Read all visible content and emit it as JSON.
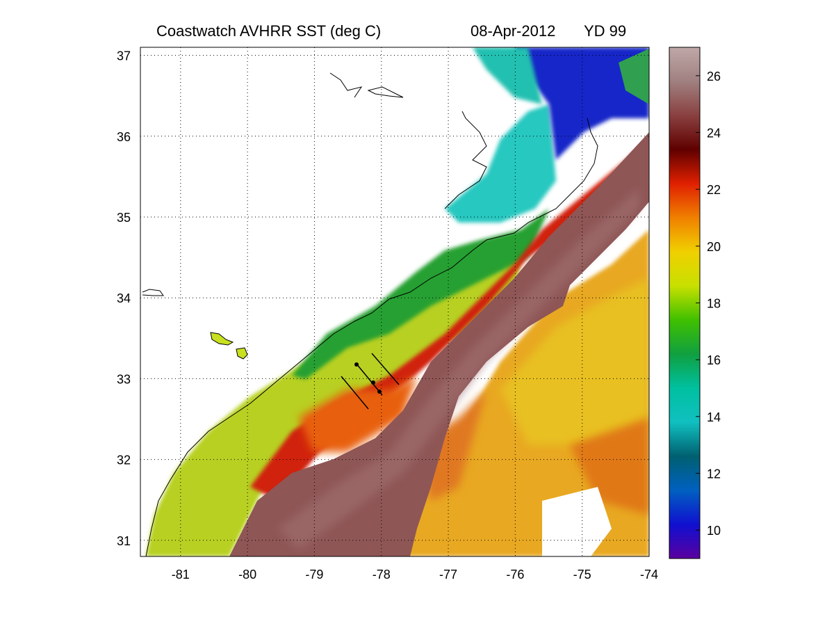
{
  "title": {
    "product": "Coastwatch   AVHRR   SST  (deg C)",
    "date": "08-Apr-2012",
    "yearday": "YD 99"
  },
  "map": {
    "lon_range": [
      -81.6,
      -74
    ],
    "lat_range": [
      30.8,
      37.1
    ],
    "lon_ticks": [
      "-81",
      "-80",
      "-79",
      "-78",
      "-77",
      "-76",
      "-75",
      "-74"
    ],
    "lon_values": [
      -81,
      -80,
      -79,
      -78,
      -77,
      -76,
      -75,
      -74
    ],
    "lat_ticks": [
      "37",
      "36",
      "35",
      "34",
      "33",
      "32",
      "31"
    ],
    "lat_values": [
      37,
      36,
      35,
      34,
      33,
      32,
      31
    ],
    "grid": "dotted"
  },
  "colorbar": {
    "range": [
      9,
      27
    ],
    "tick_labels": [
      "26",
      "24",
      "22",
      "20",
      "18",
      "16",
      "14",
      "12",
      "10"
    ],
    "tick_values": [
      26,
      24,
      22,
      20,
      18,
      16,
      14,
      12,
      10
    ],
    "colors": [
      "#5a00a0",
      "#1010d0",
      "#0060c0",
      "#006070",
      "#10c0c0",
      "#00c0a0",
      "#10a040",
      "#40c000",
      "#c8e000",
      "#f0d000",
      "#f08000",
      "#e02000",
      "#600000",
      "#8a4040",
      "#a08080",
      "#c0a8a8"
    ]
  },
  "colors": {
    "gulf_stream": "#8f5656",
    "warm_edge": "#a81010",
    "offshore": "#e8b020",
    "shelf_green": "#2aa030",
    "coastal_yellow": "#b0d020",
    "sound_cyan": "#30c8c0",
    "northern_blue": "#1020c0",
    "land": "#ffffff"
  }
}
